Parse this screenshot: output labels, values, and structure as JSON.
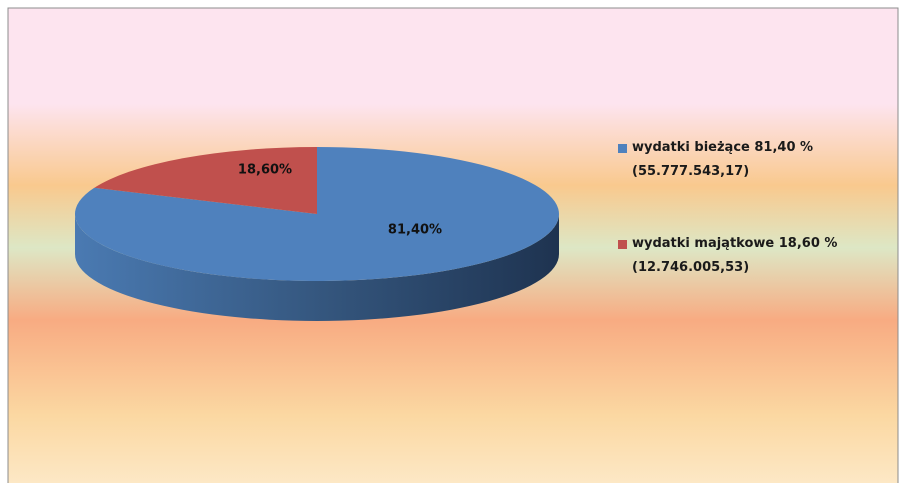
{
  "chart_data": {
    "type": "pie",
    "categories": [
      "wydatki bieżące 81,40 %\n(55.777.543,17)",
      "wydatki majątkowe 18,60 %\n(12.746.005,53)"
    ],
    "values": [
      81.4,
      18.6
    ],
    "value_labels": [
      "81,40%",
      "18,60%"
    ],
    "colors": [
      "#4f81bd",
      "#c0504d"
    ],
    "legend": "right"
  }
}
